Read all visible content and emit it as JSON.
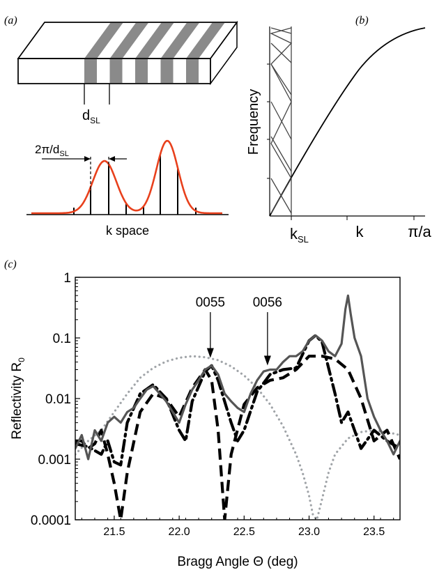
{
  "panel_a": {
    "label": "(a)",
    "dsl_main": "d",
    "dsl_sub": "SL",
    "period_label_main": "2π/d",
    "period_label_sub": "SL",
    "axis_label": "k space",
    "stripe_count": 5,
    "stripe_color": "#8a8a8a",
    "envelope_color": "#e8401c"
  },
  "panel_b": {
    "label": "(b)",
    "ylabel": "Frequency",
    "x_ticks": [
      {
        "main": "k",
        "sub": "SL"
      },
      {
        "main": "k",
        "sub": ""
      },
      {
        "main": "π/a",
        "sub": ""
      }
    ]
  },
  "chart_data": {
    "type": "line",
    "label": "(c)",
    "title": "",
    "xlabel": "Bragg Angle Θ (deg)",
    "ylabel_main": "Reflectivity R",
    "ylabel_sub": "0",
    "xlim": [
      21.2,
      23.7
    ],
    "ylim": [
      0.0001,
      1
    ],
    "yscale": "log",
    "x_ticks": [
      21.5,
      22.0,
      22.5,
      23.0,
      23.5
    ],
    "x_tick_labels": [
      "21.5",
      "22.0",
      "22.5",
      "23.0",
      "23.5"
    ],
    "y_ticks": [
      0.0001,
      0.001,
      0.01,
      0.1,
      1
    ],
    "y_tick_labels": [
      "0.0001",
      "0.001",
      "0.01",
      "0.1",
      "1"
    ],
    "annotations": [
      {
        "text": "0055",
        "x": 22.24,
        "y": 0.04
      },
      {
        "text": "0056",
        "x": 22.68,
        "y": 0.03
      }
    ],
    "series": [
      {
        "style": "solid",
        "color": "#555555",
        "x": [
          21.2,
          21.25,
          21.3,
          21.35,
          21.4,
          21.45,
          21.5,
          21.55,
          21.6,
          21.65,
          21.7,
          21.75,
          21.8,
          21.85,
          21.9,
          21.95,
          22.0,
          22.05,
          22.1,
          22.15,
          22.2,
          22.25,
          22.3,
          22.35,
          22.4,
          22.45,
          22.5,
          22.55,
          22.6,
          22.65,
          22.7,
          22.75,
          22.8,
          22.85,
          22.9,
          22.95,
          23.0,
          23.05,
          23.1,
          23.15,
          23.2,
          23.25,
          23.28,
          23.3,
          23.32,
          23.35,
          23.4,
          23.45,
          23.5,
          23.55,
          23.6,
          23.65,
          23.7
        ],
        "y": [
          0.0015,
          0.0025,
          0.001,
          0.003,
          0.002,
          0.004,
          0.005,
          0.004,
          0.006,
          0.007,
          0.01,
          0.014,
          0.016,
          0.012,
          0.009,
          0.006,
          0.004,
          0.008,
          0.014,
          0.02,
          0.03,
          0.035,
          0.025,
          0.012,
          0.009,
          0.007,
          0.006,
          0.012,
          0.02,
          0.028,
          0.03,
          0.03,
          0.04,
          0.05,
          0.05,
          0.06,
          0.09,
          0.11,
          0.09,
          0.06,
          0.05,
          0.08,
          0.3,
          0.5,
          0.25,
          0.1,
          0.05,
          0.01,
          0.005,
          0.003,
          0.002,
          0.0012,
          0.002
        ]
      },
      {
        "style": "dash-dot",
        "color": "#000000",
        "x": [
          21.2,
          21.3,
          21.4,
          21.45,
          21.5,
          21.55,
          21.6,
          21.7,
          21.8,
          21.85,
          21.9,
          22.0,
          22.05,
          22.1,
          22.2,
          22.25,
          22.3,
          22.4,
          22.45,
          22.5,
          22.6,
          22.7,
          22.8,
          22.9,
          23.0,
          23.05,
          23.1,
          23.2,
          23.25,
          23.3,
          23.4,
          23.5,
          23.6,
          23.7
        ],
        "y": [
          0.0018,
          0.0016,
          0.0012,
          0.002,
          0.0009,
          0.0008,
          0.004,
          0.012,
          0.017,
          0.013,
          0.01,
          0.003,
          0.002,
          0.009,
          0.028,
          0.035,
          0.02,
          0.004,
          0.002,
          0.003,
          0.013,
          0.025,
          0.03,
          0.032,
          0.09,
          0.11,
          0.085,
          0.012,
          0.004,
          0.006,
          0.0015,
          0.003,
          0.002,
          0.0015
        ]
      },
      {
        "style": "dashed",
        "color": "#000000",
        "x": [
          21.2,
          21.25,
          21.3,
          21.35,
          21.4,
          21.45,
          21.5,
          21.55,
          21.6,
          21.7,
          21.8,
          21.9,
          22.0,
          22.1,
          22.2,
          22.25,
          22.3,
          22.35,
          22.4,
          22.5,
          22.6,
          22.7,
          22.8,
          22.9,
          23.0,
          23.1,
          23.2,
          23.3,
          23.4,
          23.5,
          23.6,
          23.7
        ],
        "y": [
          0.002,
          0.002,
          0.0015,
          0.0018,
          0.003,
          0.0012,
          0.0004,
          0.0001,
          0.0006,
          0.006,
          0.012,
          0.01,
          0.005,
          0.015,
          0.03,
          0.02,
          0.003,
          0.0001,
          0.0012,
          0.008,
          0.015,
          0.02,
          0.022,
          0.03,
          0.05,
          0.05,
          0.045,
          0.03,
          0.01,
          0.002,
          0.003,
          0.001
        ]
      },
      {
        "style": "dotted",
        "color": "#a0a4a8",
        "x": [
          21.2,
          21.3,
          21.4,
          21.5,
          21.6,
          21.7,
          21.8,
          21.9,
          22.0,
          22.1,
          22.2,
          22.3,
          22.4,
          22.5,
          22.6,
          22.7,
          22.8,
          22.9,
          22.95,
          23.0,
          23.03,
          23.06,
          23.1,
          23.15,
          23.2,
          23.3,
          23.4,
          23.5,
          23.6,
          23.7
        ],
        "y": [
          0.0012,
          0.002,
          0.003,
          0.006,
          0.012,
          0.022,
          0.032,
          0.041,
          0.047,
          0.05,
          0.048,
          0.043,
          0.034,
          0.024,
          0.015,
          0.008,
          0.0035,
          0.0012,
          0.0006,
          0.00025,
          0.00012,
          0.0001,
          0.00022,
          0.0006,
          0.0012,
          0.0022,
          0.0028,
          0.003,
          0.0028,
          0.0025
        ]
      }
    ]
  }
}
